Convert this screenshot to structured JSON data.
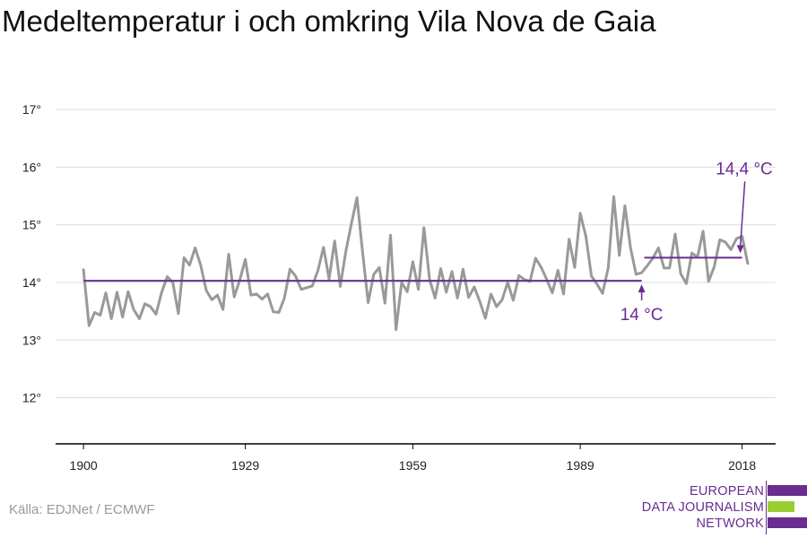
{
  "title": "Medeltemperatur i och omkring Vila Nova de Gaia",
  "source": "Källa: EDJNet / ECMWF",
  "logo": {
    "lines": [
      "EUROPEAN",
      "DATA JOURNALISM",
      "NETWORK"
    ],
    "colors": {
      "purple": "#6a2c91",
      "green": "#9acd32"
    }
  },
  "colors": {
    "series": "#999999",
    "reference": "#6a2c91",
    "grid": "#dddddd",
    "axis": "#000000",
    "tick_text": "#222222"
  },
  "chart_data": {
    "type": "line",
    "title": "Medeltemperatur i och omkring Vila Nova de Gaia",
    "xlabel": "",
    "ylabel": "",
    "xlim": [
      1895,
      2024
    ],
    "ylim": [
      11.2,
      17.5
    ],
    "x_ticks": [
      1900,
      1929,
      1959,
      1989,
      2018
    ],
    "x_tick_labels": [
      "1900",
      "1929",
      "1959",
      "1989",
      "2018"
    ],
    "y_ticks": [
      12,
      13,
      14,
      15,
      16,
      17
    ],
    "y_tick_labels": [
      "12°",
      "13°",
      "14°",
      "15°",
      "16°",
      "17°"
    ],
    "grid": true,
    "series": [
      {
        "x": [
          1900,
          1901,
          1902,
          1903,
          1904,
          1905,
          1906,
          1907,
          1908,
          1909,
          1910,
          1911,
          1912,
          1913,
          1914,
          1915,
          1916,
          1917,
          1918,
          1919,
          1920,
          1921,
          1922,
          1923,
          1924,
          1925,
          1926,
          1927,
          1928,
          1929,
          1930,
          1931,
          1932,
          1933,
          1934,
          1935,
          1936,
          1937,
          1938,
          1939,
          1940,
          1941,
          1942,
          1943,
          1944,
          1945,
          1946,
          1947,
          1948,
          1949,
          1950,
          1951,
          1952,
          1953,
          1954,
          1955,
          1956,
          1957,
          1958,
          1959,
          1960,
          1961,
          1962,
          1963,
          1964,
          1965,
          1966,
          1967,
          1968,
          1969,
          1970,
          1971,
          1972,
          1973,
          1974,
          1975,
          1976,
          1977,
          1978,
          1979,
          1980,
          1981,
          1982,
          1983,
          1984,
          1985,
          1986,
          1987,
          1988,
          1989,
          1990,
          1991,
          1992,
          1993,
          1994,
          1995,
          1996,
          1997,
          1998,
          1999,
          2000,
          2001,
          2002,
          2003,
          2004,
          2005,
          2006,
          2007,
          2008,
          2009,
          2010,
          2011,
          2012,
          2013,
          2014,
          2015,
          2016,
          2017,
          2018,
          2019
        ],
        "values": [
          14.22,
          13.25,
          13.48,
          13.43,
          13.82,
          13.37,
          13.83,
          13.4,
          13.84,
          13.53,
          13.37,
          13.63,
          13.58,
          13.45,
          13.83,
          14.1,
          14.0,
          13.46,
          14.43,
          14.3,
          14.6,
          14.3,
          13.86,
          13.7,
          13.78,
          13.53,
          14.49,
          13.75,
          14.04,
          14.4,
          13.78,
          13.8,
          13.71,
          13.8,
          13.49,
          13.48,
          13.73,
          14.23,
          14.11,
          13.88,
          13.91,
          13.94,
          14.21,
          14.61,
          14.06,
          14.72,
          13.93,
          14.54,
          15.02,
          15.47,
          14.52,
          13.65,
          14.14,
          14.26,
          13.64,
          14.82,
          13.18,
          14.0,
          13.84,
          14.36,
          13.88,
          14.95,
          14.05,
          13.73,
          14.24,
          13.83,
          14.19,
          13.73,
          14.23,
          13.74,
          13.92,
          13.67,
          13.38,
          13.8,
          13.58,
          13.7,
          14.0,
          13.69,
          14.12,
          14.05,
          14.02,
          14.42,
          14.26,
          14.05,
          13.82,
          14.21,
          13.8,
          14.75,
          14.26,
          15.2,
          14.8,
          14.11,
          13.97,
          13.81,
          14.25,
          15.49,
          14.47,
          15.33,
          14.6,
          14.14,
          14.17,
          14.29,
          14.42,
          14.6,
          14.25,
          14.25,
          14.84,
          14.15,
          13.98,
          14.51,
          14.44,
          14.89,
          14.02,
          14.27,
          14.74,
          14.7,
          14.57,
          14.76,
          14.8,
          14.33
        ]
      }
    ],
    "reference_lines": [
      {
        "label": "14 °C",
        "value": 14.03,
        "x_start": 1900,
        "x_end": 2000
      },
      {
        "label": "14,4 °C",
        "value": 14.43,
        "x_start": 2000,
        "x_end": 2018
      }
    ]
  }
}
